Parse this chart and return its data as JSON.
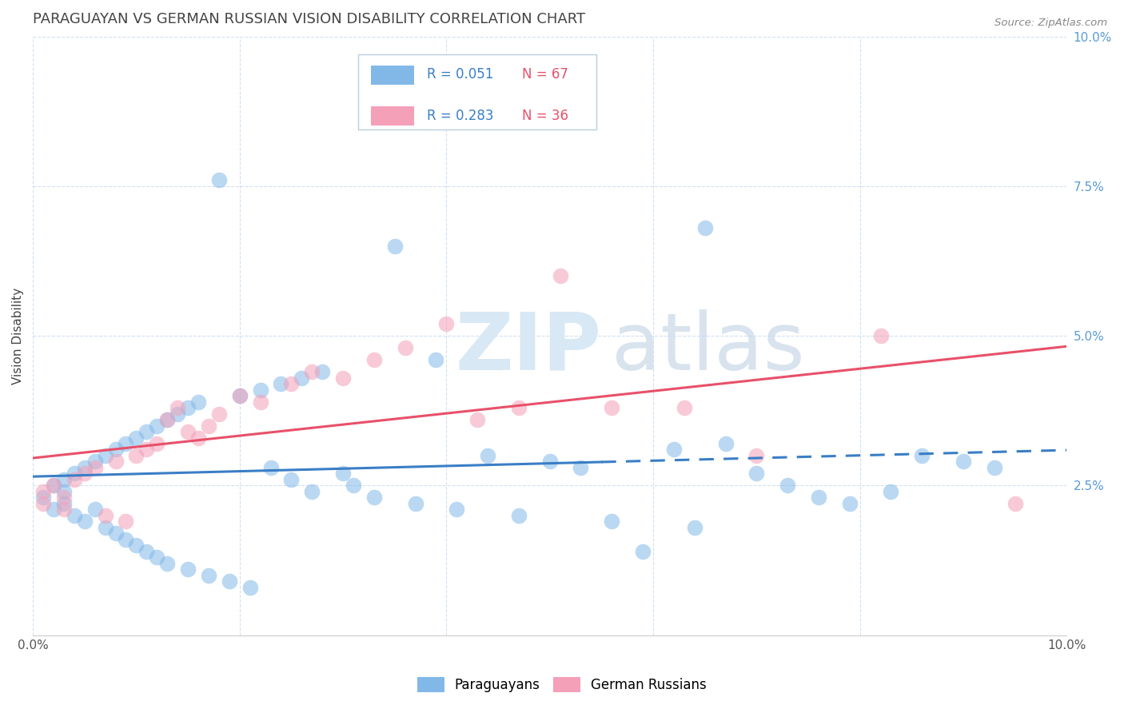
{
  "title": "PARAGUAYAN VS GERMAN RUSSIAN VISION DISABILITY CORRELATION CHART",
  "source": "Source: ZipAtlas.com",
  "ylabel_label": "Vision Disability",
  "xlim": [
    0.0,
    0.1
  ],
  "ylim": [
    0.0,
    0.1
  ],
  "yticks": [
    0.025,
    0.05,
    0.075,
    0.1
  ],
  "ytick_labels": [
    "2.5%",
    "5.0%",
    "7.5%",
    "10.0%"
  ],
  "xtick_left_label": "0.0%",
  "xtick_right_label": "10.0%",
  "paraguayan_color": "#82B8E8",
  "german_russian_color": "#F4A0B8",
  "trend_paraguayan_color": "#3A7EC6",
  "trend_german_russian_color": "#E8506A",
  "watermark_color": "#D8E8F4",
  "legend_r_color": "#3A7EC6",
  "legend_n_color": "#E8506A",
  "title_color": "#444444",
  "ylabel_color": "#444444",
  "ytick_color": "#5B9BD5",
  "source_color": "#888888",
  "grid_color": "#CCDDF0",
  "par_x": [
    0.001,
    0.002,
    0.002,
    0.003,
    0.003,
    0.003,
    0.004,
    0.004,
    0.005,
    0.005,
    0.006,
    0.006,
    0.007,
    0.007,
    0.008,
    0.008,
    0.009,
    0.009,
    0.01,
    0.01,
    0.011,
    0.011,
    0.012,
    0.012,
    0.013,
    0.013,
    0.014,
    0.015,
    0.015,
    0.016,
    0.017,
    0.018,
    0.019,
    0.02,
    0.021,
    0.022,
    0.023,
    0.024,
    0.025,
    0.026,
    0.027,
    0.028,
    0.03,
    0.031,
    0.033,
    0.035,
    0.037,
    0.039,
    0.041,
    0.044,
    0.047,
    0.05,
    0.053,
    0.056,
    0.059,
    0.062,
    0.064,
    0.065,
    0.067,
    0.07,
    0.073,
    0.076,
    0.079,
    0.083,
    0.086,
    0.09,
    0.093
  ],
  "par_y": [
    0.023,
    0.025,
    0.021,
    0.026,
    0.022,
    0.024,
    0.027,
    0.02,
    0.028,
    0.019,
    0.029,
    0.021,
    0.03,
    0.018,
    0.031,
    0.017,
    0.032,
    0.016,
    0.033,
    0.015,
    0.034,
    0.014,
    0.035,
    0.013,
    0.036,
    0.012,
    0.037,
    0.038,
    0.011,
    0.039,
    0.01,
    0.076,
    0.009,
    0.04,
    0.008,
    0.041,
    0.028,
    0.042,
    0.026,
    0.043,
    0.024,
    0.044,
    0.027,
    0.025,
    0.023,
    0.065,
    0.022,
    0.046,
    0.021,
    0.03,
    0.02,
    0.029,
    0.028,
    0.019,
    0.014,
    0.031,
    0.018,
    0.068,
    0.032,
    0.027,
    0.025,
    0.023,
    0.022,
    0.024,
    0.03,
    0.029,
    0.028
  ],
  "gr_x": [
    0.001,
    0.001,
    0.002,
    0.003,
    0.003,
    0.004,
    0.005,
    0.006,
    0.007,
    0.008,
    0.009,
    0.01,
    0.011,
    0.012,
    0.013,
    0.014,
    0.015,
    0.016,
    0.017,
    0.018,
    0.02,
    0.022,
    0.025,
    0.027,
    0.03,
    0.033,
    0.036,
    0.04,
    0.043,
    0.047,
    0.051,
    0.056,
    0.063,
    0.07,
    0.082,
    0.095
  ],
  "gr_y": [
    0.024,
    0.022,
    0.025,
    0.023,
    0.021,
    0.026,
    0.027,
    0.028,
    0.02,
    0.029,
    0.019,
    0.03,
    0.031,
    0.032,
    0.036,
    0.038,
    0.034,
    0.033,
    0.035,
    0.037,
    0.04,
    0.039,
    0.042,
    0.044,
    0.043,
    0.046,
    0.048,
    0.052,
    0.036,
    0.038,
    0.06,
    0.038,
    0.038,
    0.03,
    0.05,
    0.022
  ]
}
